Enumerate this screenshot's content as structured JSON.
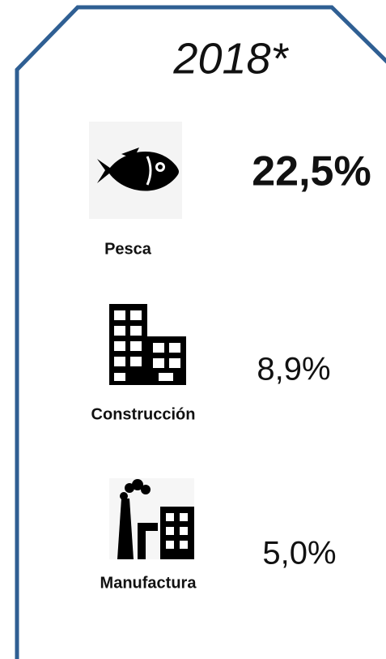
{
  "title": "2018*",
  "items": [
    {
      "label": "Pesca",
      "value": "22,5%"
    },
    {
      "label": "Construcción",
      "value": "8,9%"
    },
    {
      "label": "Manufactura",
      "value": "5,0%"
    }
  ]
}
